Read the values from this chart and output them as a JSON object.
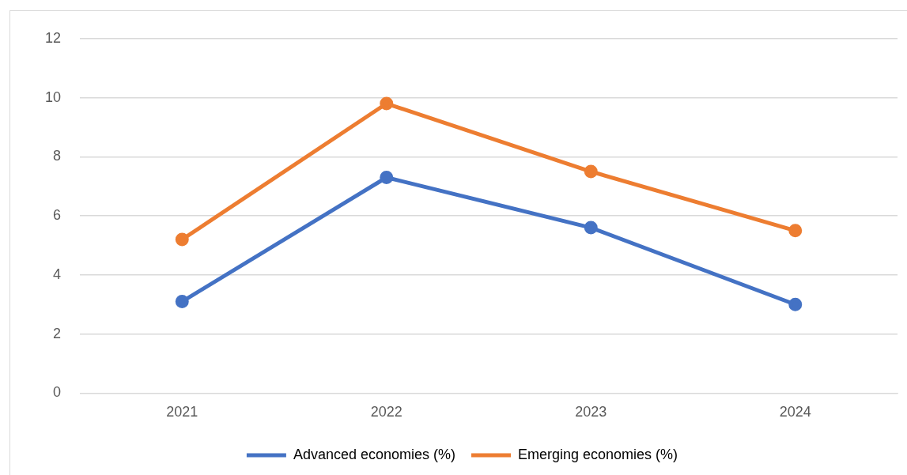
{
  "chart_data": {
    "type": "line",
    "categories": [
      "2021",
      "2022",
      "2023",
      "2024"
    ],
    "series": [
      {
        "name": "Advanced economies (%)",
        "color": "#4472c4",
        "values": [
          3.1,
          7.3,
          5.6,
          3.0
        ]
      },
      {
        "name": "Emerging economies (%)",
        "color": "#ed7d31",
        "values": [
          5.2,
          9.8,
          7.5,
          5.5
        ]
      }
    ],
    "ylim": [
      0,
      12
    ],
    "yticks": [
      0,
      2,
      4,
      6,
      8,
      10,
      12
    ],
    "grid": "y",
    "legend": "bottom",
    "marker": "circle",
    "line_style": "solid"
  }
}
